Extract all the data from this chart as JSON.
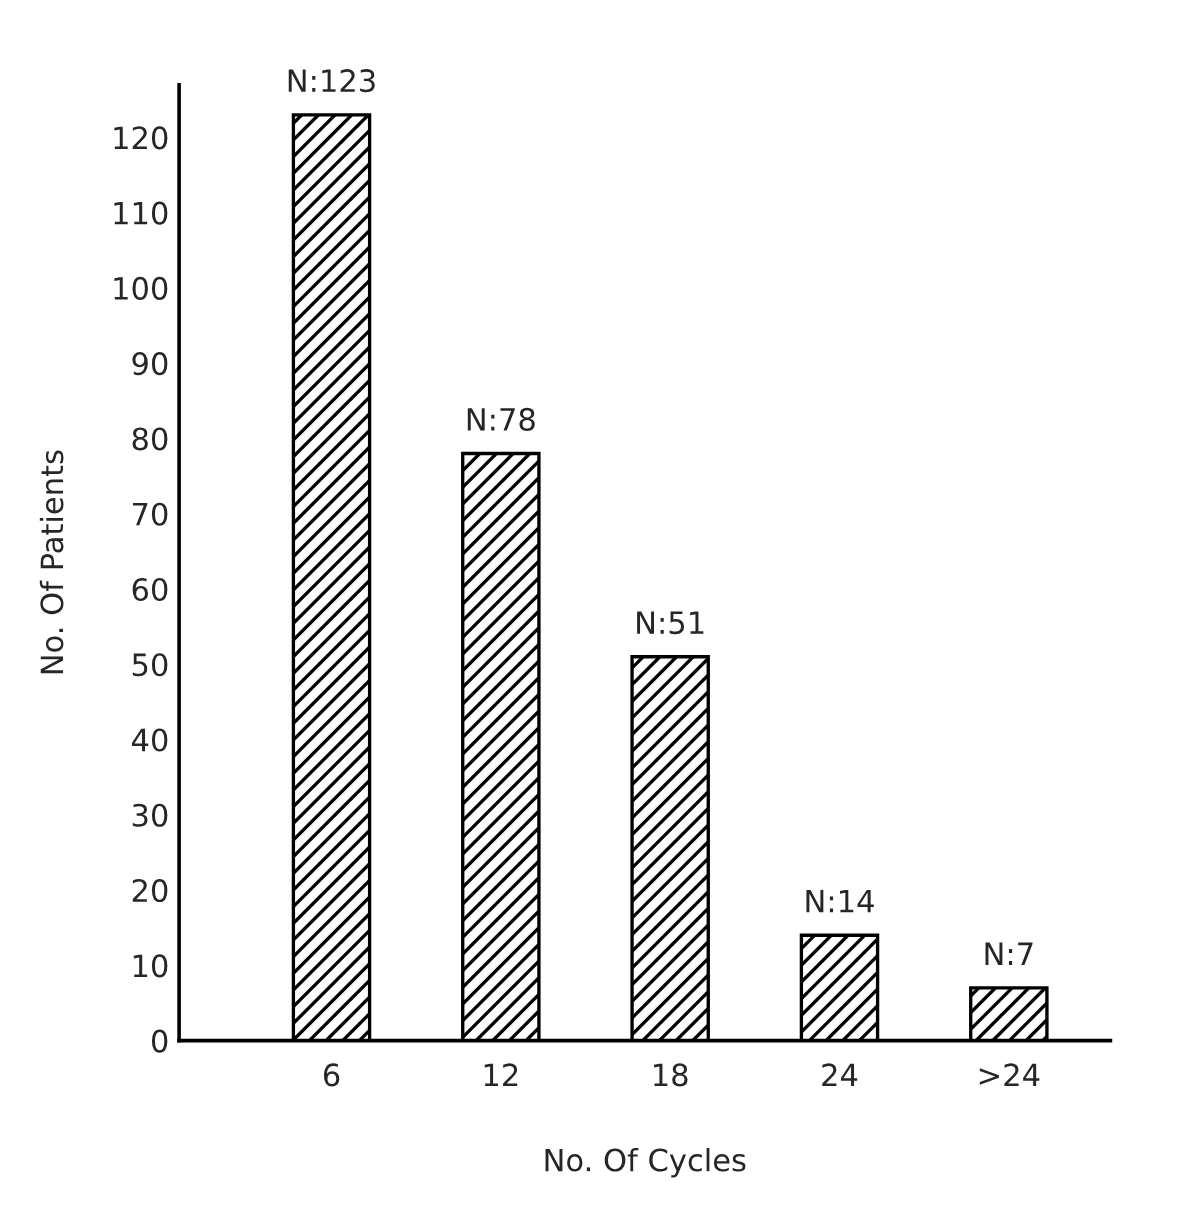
{
  "chart_data": {
    "type": "bar",
    "xlabel": "No. Of Cycles",
    "ylabel": "No. Of Patients",
    "categories": [
      "6",
      "12",
      "18",
      "24",
      ">24"
    ],
    "values": [
      123,
      78,
      51,
      14,
      7
    ],
    "value_labels": [
      "N:123",
      "N:78",
      "N:51",
      "N:14",
      "N:7"
    ],
    "color": "#000000",
    "ylim": [
      0,
      127
    ],
    "yticks": [
      0,
      10,
      20,
      30,
      40,
      50,
      60,
      70,
      80,
      90,
      100,
      110,
      120
    ],
    "grid": false,
    "legend": false
  }
}
